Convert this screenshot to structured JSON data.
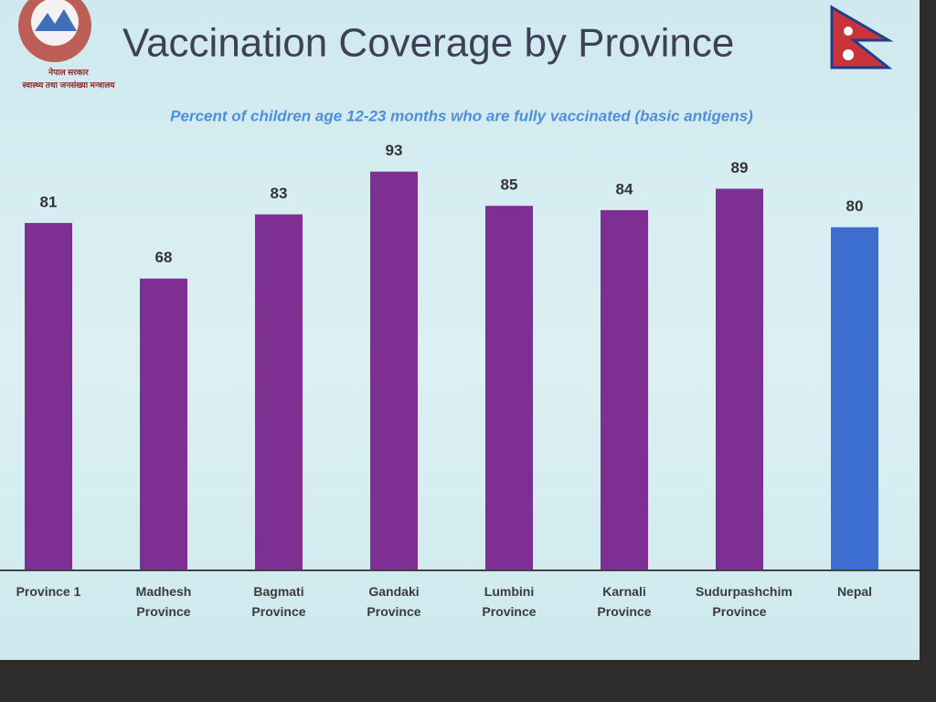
{
  "chart_data": {
    "type": "bar",
    "title": "Vaccination Coverage by Province",
    "subtitle": "Percent of children age 12-23 months who are fully vaccinated (basic antigens)",
    "logo_text": [
      "नेपाल सरकार",
      "स्वास्थ्य तथा जनसंख्या मन्त्रालय"
    ],
    "categories": [
      "Province 1",
      "Madhesh Province",
      "Bagmati Province",
      "Gandaki Province",
      "Lumbini Province",
      "Karnali Province",
      "Sudurpashchim Province",
      "Nepal"
    ],
    "values": [
      81,
      68,
      83,
      93,
      85,
      84,
      89,
      80
    ],
    "colors": [
      "#7e2f92",
      "#7e2f92",
      "#7e2f92",
      "#7e2f92",
      "#7e2f92",
      "#7e2f92",
      "#7e2f92",
      "#3d6fd0"
    ],
    "ylim": [
      0,
      100
    ]
  }
}
